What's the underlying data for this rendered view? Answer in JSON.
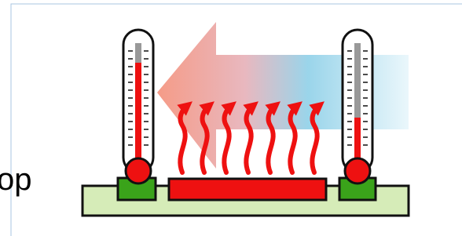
{
  "label": "op"
}
